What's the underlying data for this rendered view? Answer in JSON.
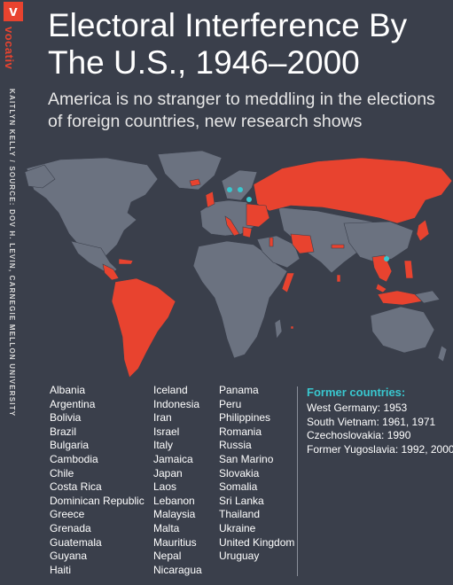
{
  "brand": {
    "logo_letter": "v",
    "name": "vocativ",
    "credit": "KAITLYN KELLY / SOURCE: DOV H. LEVIN, CARNEGIE MELLON UNIVERSITY"
  },
  "header": {
    "title": "Electoral Interference By The U.S., 1946–2000",
    "subtitle": "America is no stranger to meddling in the elections of foreign countries, new research shows"
  },
  "colors": {
    "background": "#3a3f4b",
    "land": "#6b7280",
    "highlight": "#e8432f",
    "former_marker": "#39c7cf",
    "accent_text": "#39c7cf"
  },
  "country_columns": [
    [
      "Albania",
      "Argentina",
      "Bolivia",
      "Brazil",
      "Bulgaria",
      "Cambodia",
      "Chile",
      "Costa Rica",
      "Dominican Republic",
      "Greece",
      "Grenada",
      "Guatemala",
      "Guyana",
      "Haiti"
    ],
    [
      "Iceland",
      "Indonesia",
      "Iran",
      "Israel",
      "Italy",
      "Jamaica",
      "Japan",
      "Laos",
      "Lebanon",
      "Malaysia",
      "Malta",
      "Mauritius",
      "Nepal",
      "Nicaragua"
    ],
    [
      "Panama",
      "Peru",
      "Philippines",
      "Romania",
      "Russia",
      "San Marino",
      "Slovakia",
      "Somalia",
      "Sri Lanka",
      "Thailand",
      "Ukraine",
      "United Kingdom",
      "Uruguay"
    ]
  ],
  "former_countries": {
    "heading": "Former countries:",
    "items": [
      "West Germany: 1953",
      "South Vietnam: 1961, 1971",
      "Czechoslovakia: 1990",
      "Former Yugoslavia: 1992, 2000"
    ]
  }
}
